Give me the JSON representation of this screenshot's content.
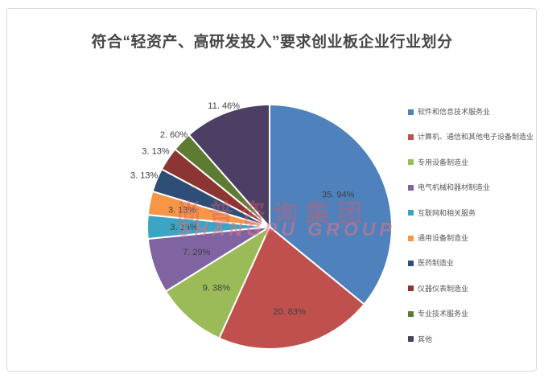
{
  "title": "符合“轻资产、高研发投入”要求创业板企业行业划分",
  "watermark": {
    "line1": "尚普咨询集团",
    "line2": "SHANGPU GROUP"
  },
  "chart_data": {
    "type": "pie",
    "title": "符合“轻资产、高研发投入”要求创业板企业行业划分",
    "direction": "clockwise",
    "start_angle_deg": 0,
    "legend_position": "right",
    "slice_border_color": "#ffffff",
    "label_color": "#404040",
    "slices": [
      {
        "label": "软件和信息技术服务业",
        "value": 35.94,
        "display": "35. 94%",
        "color": "#4F81BD",
        "label_r": 0.62
      },
      {
        "label": "计算机、通信和其他电子设备制造业",
        "value": 20.83,
        "display": "20. 83%",
        "color": "#C0504D",
        "label_r": 0.71
      },
      {
        "label": "专用设备制造业",
        "value": 9.38,
        "display": "9. 38%",
        "color": "#9BBB59",
        "label_r": 0.66
      },
      {
        "label": "电气机械和器材制造业",
        "value": 7.29,
        "display": "7. 29%",
        "color": "#8064A2",
        "label_r": 0.63
      },
      {
        "label": "互联网和相关服务",
        "value": 3.13,
        "display": "3. 13%",
        "color": "#3AA5C4",
        "label_r": 0.7
      },
      {
        "label": "通用设备制造业",
        "value": 3.13,
        "display": "3. 13%",
        "color": "#F79646",
        "label_r": 0.73
      },
      {
        "label": "医药制造业",
        "value": 3.13,
        "display": "3. 13%",
        "color": "#2E4E78",
        "label_r": 1.11
      },
      {
        "label": "仪器仪表制造业",
        "value": 3.13,
        "display": "3. 13%",
        "color": "#8C3532",
        "label_r": 1.12
      },
      {
        "label": "专业技术服务业",
        "value": 2.6,
        "display": "2. 60%",
        "color": "#5E7B33",
        "label_r": 1.09
      },
      {
        "label": "其他",
        "value": 11.46,
        "display": "11. 46%",
        "color": "#4D3F64",
        "label_r": 1.06
      }
    ]
  }
}
